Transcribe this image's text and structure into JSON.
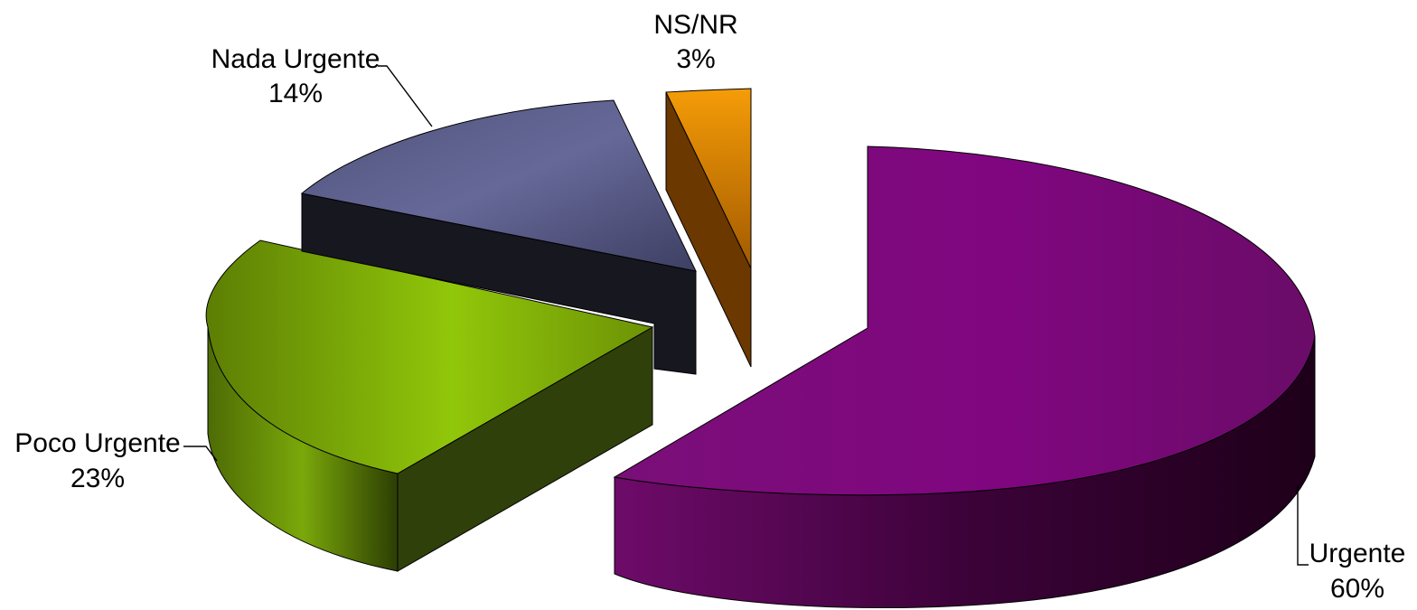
{
  "chart_data": {
    "type": "pie",
    "title": "",
    "slices": [
      {
        "category": "Urgente",
        "value": 60,
        "value_label": "60%",
        "color": "#7a0f78",
        "side_color": "#35002f"
      },
      {
        "category": "Poco Urgente",
        "value": 23,
        "value_label": "23%",
        "color": "#86ba0a",
        "side_color": "#364a05"
      },
      {
        "category": "Nada Urgente",
        "value": 14,
        "value_label": "14%",
        "color": "#5e5f8f",
        "side_color": "#15161f"
      },
      {
        "category": "NS/NR",
        "value": 3,
        "value_label": "3%",
        "color": "#ee8f05",
        "side_color": "#6e3a00"
      }
    ],
    "exploded": true,
    "three_d": true,
    "legend": "none"
  }
}
